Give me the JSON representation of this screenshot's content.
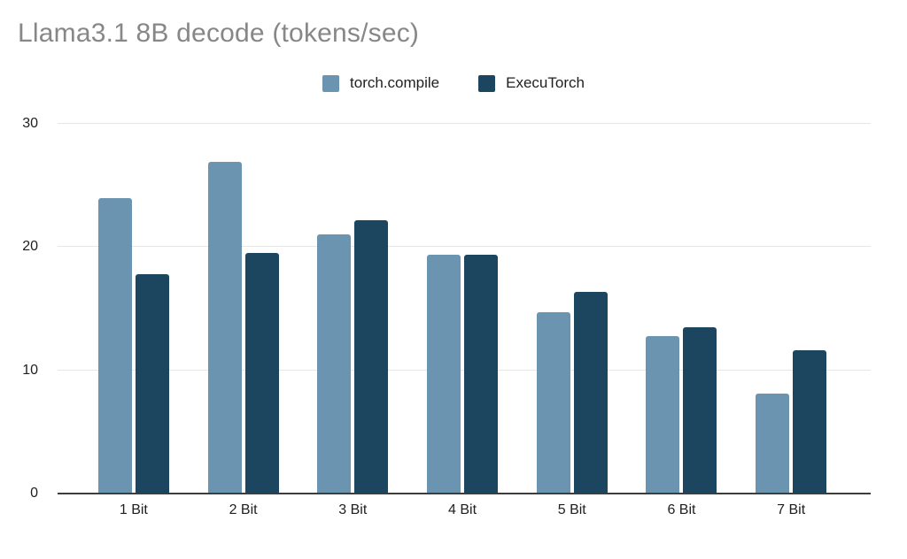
{
  "title": "Llama3.1 8B decode (tokens/sec)",
  "chart_data": {
    "type": "bar",
    "title": "Llama3.1 8B decode (tokens/sec)",
    "categories": [
      "1 Bit",
      "2 Bit",
      "3 Bit",
      "4 Bit",
      "5 Bit",
      "6 Bit",
      "7 Bit"
    ],
    "series": [
      {
        "name": "torch.compile",
        "color": "#6b94b1",
        "values": [
          24.0,
          26.9,
          21.0,
          19.4,
          14.7,
          12.8,
          8.1
        ]
      },
      {
        "name": "ExecuTorch",
        "color": "#1c4660",
        "values": [
          17.8,
          19.5,
          22.2,
          19.4,
          16.4,
          13.5,
          11.6
        ]
      }
    ],
    "xlabel": "",
    "ylabel": "",
    "ylim": [
      0,
      30
    ],
    "yticks": [
      0,
      10,
      20,
      30
    ],
    "grid": true,
    "legend_position": "top"
  },
  "colors": {
    "title_text": "#878787",
    "label_text": "#1f1f1f",
    "gridline": "#e6e6e6",
    "baseline": "#3d3d3d",
    "background": "#ffffff",
    "series_torch_compile": "#6b94b1",
    "series_executorch": "#1c4660"
  }
}
